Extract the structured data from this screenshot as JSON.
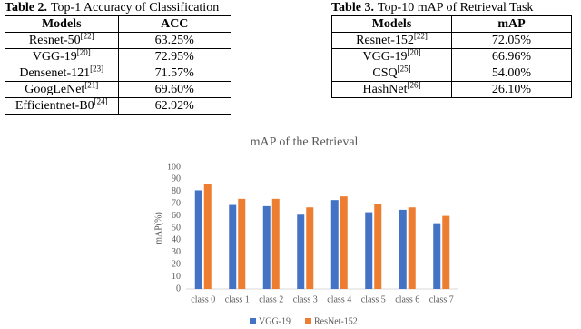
{
  "table2": {
    "caption": {
      "label": "Table 2.",
      "text": "Top-1 Accuracy of Classification"
    },
    "header": [
      "Models",
      "ACC"
    ],
    "rows": [
      [
        {
          "name": "Resnet-50",
          "ref": "[22]"
        },
        "63.25%"
      ],
      [
        {
          "name": "VGG-19",
          "ref": "[20]"
        },
        "72.95%"
      ],
      [
        {
          "name": "Densenet-121",
          "ref": "[23]"
        },
        "71.57%"
      ],
      [
        {
          "name": "GoogLeNet",
          "ref": "[21]"
        },
        "69.60%"
      ],
      [
        {
          "name": "Efficientnet-B0",
          "ref": "[24]"
        },
        "62.92%"
      ]
    ]
  },
  "table3": {
    "caption": {
      "label": "Table 3.",
      "text": "Top-10 mAP of Retrieval Task"
    },
    "header": [
      "Models",
      "mAP"
    ],
    "rows": [
      [
        {
          "name": "Resnet-152",
          "ref": "[22]"
        },
        "72.05%"
      ],
      [
        {
          "name": "VGG-19",
          "ref": "[20]"
        },
        "66.96%"
      ],
      [
        {
          "name": "CSQ",
          "ref": "[25]"
        },
        "54.00%"
      ],
      [
        {
          "name": "HashNet",
          "ref": "[26]"
        },
        "26.10%"
      ]
    ]
  },
  "chart_data": {
    "type": "bar",
    "title": "mAP of the Retrieval",
    "y_label": "mAP(%)",
    "categories": [
      "class 0",
      "class 1",
      "class 2",
      "class 3",
      "class 4",
      "class 5",
      "class 6",
      "class 7"
    ],
    "series": [
      {
        "name": "VGG-19",
        "color": "#4472c4",
        "values": [
          81,
          69,
          68,
          61,
          73,
          63,
          65,
          54
        ]
      },
      {
        "name": "ResNet-152",
        "color": "#ed7d31",
        "values": [
          86,
          74,
          74,
          67,
          76,
          70,
          67,
          60
        ]
      }
    ],
    "ylim": [
      0,
      100
    ],
    "yticks": [
      0,
      10,
      20,
      30,
      40,
      50,
      60,
      70,
      80,
      90,
      100
    ],
    "grid": false,
    "legend": "bottom"
  }
}
